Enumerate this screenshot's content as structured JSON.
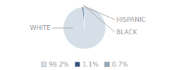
{
  "chart_data": {
    "type": "pie",
    "categories": [
      "WHITE",
      "HISPANIC",
      "BLACK"
    ],
    "values": [
      98.2,
      1.1,
      0.7
    ],
    "value_labels": [
      "98.2%",
      "1.1%",
      "0.7%"
    ],
    "colors": [
      "#d6dfe8",
      "#2d5080",
      "#8fa8bc"
    ],
    "legend": "bottom"
  }
}
